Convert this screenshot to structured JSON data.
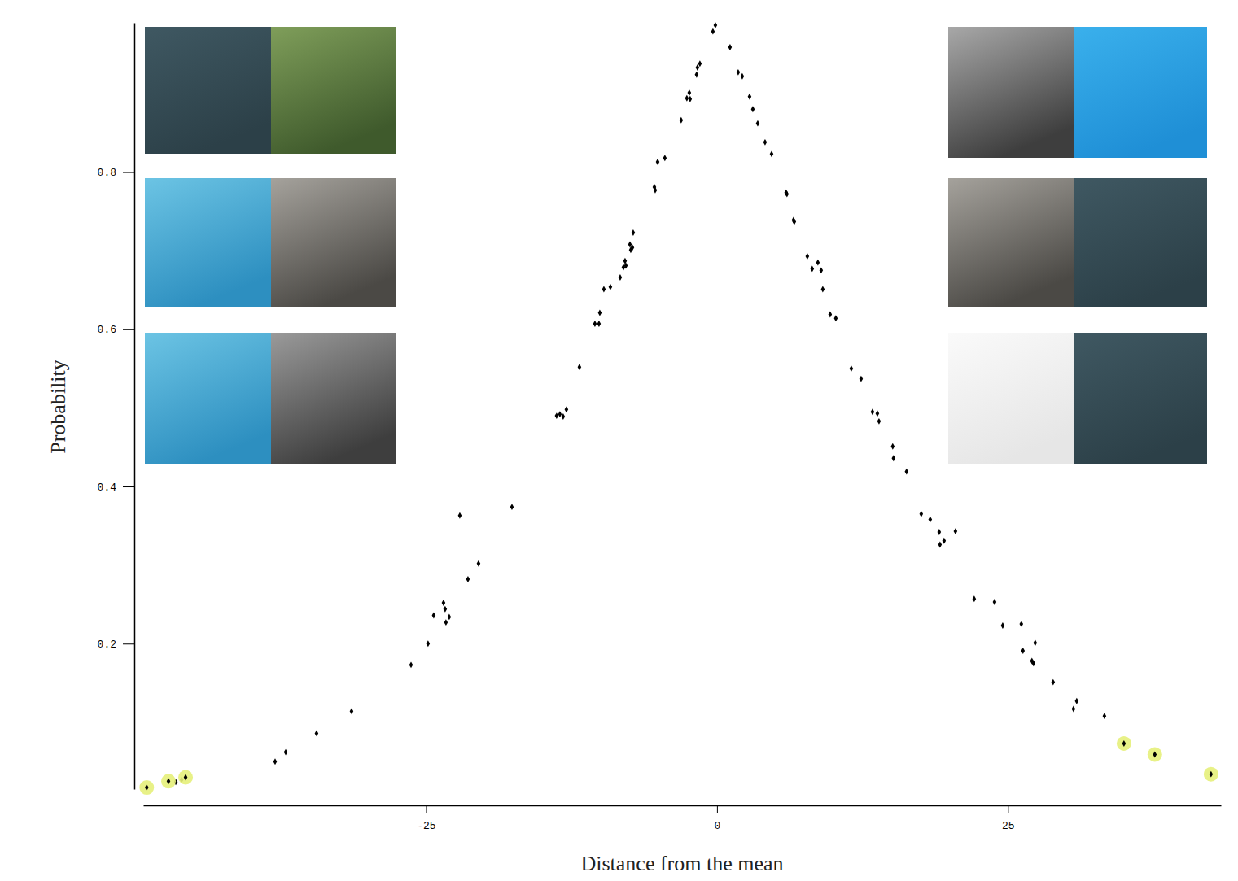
{
  "chart_data": {
    "type": "scatter",
    "x_label": "Distance from the mean",
    "y_label": "Probability",
    "xlim": [
      -49.3,
      43.3
    ],
    "ylim": [
      0.015,
      0.99
    ],
    "xticks": [
      -25,
      0,
      25
    ],
    "yticks": [
      0.2,
      0.4,
      0.6,
      0.8
    ],
    "series": [
      {
        "color": "#000000",
        "marker": "diamond",
        "x": [
          -46.5,
          -46.0,
          -37.97,
          -37.06,
          -34.41,
          -31.4,
          -26.29,
          -24.83,
          -24.34,
          -23.5,
          -23.36,
          -23.29,
          -23.01,
          -22.1,
          -21.4,
          -20.49,
          -17.62,
          -11.82,
          -13.78,
          -13.5,
          -13.22,
          -12.94,
          -10.49,
          -10.07,
          -10.14,
          -9.72,
          -9.16,
          -8.32,
          -8.04,
          -7.9,
          -7.83,
          -7.48,
          -7.41,
          -7.27,
          -7.2,
          -5.38,
          -5.31,
          -5.1,
          -4.48,
          -3.08,
          -2.59,
          -2.38,
          -2.31,
          -1.75,
          -1.68,
          -1.47,
          -0.35,
          -0.14,
          1.12,
          1.82,
          2.17,
          2.8,
          3.08,
          3.5,
          4.13,
          4.69,
          5.94,
          6.01,
          6.57,
          6.64,
          7.76,
          8.18,
          8.67,
          8.95,
          9.09,
          9.72,
          10.21,
          11.54,
          12.38,
          13.36,
          13.78,
          13.92,
          15.1,
          15.17,
          16.29,
          17.55,
          18.32,
          19.09,
          19.16,
          19.51,
          20.49,
          22.1,
          23.85,
          24.55,
          26.15,
          26.29,
          27.34,
          27.06,
          27.2,
          28.88,
          30.63,
          30.91,
          33.29
        ],
        "values": [
          0.024,
          0.027,
          0.05,
          0.062,
          0.086,
          0.114,
          0.173,
          0.2,
          0.236,
          0.252,
          0.244,
          0.227,
          0.234,
          0.363,
          0.282,
          0.302,
          0.374,
          0.552,
          0.49,
          0.492,
          0.489,
          0.498,
          0.607,
          0.621,
          0.607,
          0.651,
          0.654,
          0.666,
          0.679,
          0.687,
          0.681,
          0.708,
          0.701,
          0.704,
          0.723,
          0.781,
          0.777,
          0.813,
          0.818,
          0.866,
          0.894,
          0.901,
          0.893,
          0.924,
          0.933,
          0.938,
          0.979,
          0.987,
          0.959,
          0.927,
          0.922,
          0.896,
          0.88,
          0.862,
          0.838,
          0.823,
          0.774,
          0.772,
          0.739,
          0.737,
          0.693,
          0.677,
          0.685,
          0.675,
          0.651,
          0.619,
          0.614,
          0.55,
          0.537,
          0.495,
          0.493,
          0.483,
          0.451,
          0.436,
          0.419,
          0.365,
          0.358,
          0.342,
          0.326,
          0.331,
          0.343,
          0.257,
          0.253,
          0.223,
          0.225,
          0.191,
          0.201,
          0.178,
          0.175,
          0.151,
          0.117,
          0.127,
          0.108
        ]
      },
      {
        "color": "#e6f07a",
        "marker": "circle",
        "x": [
          -49.0,
          -47.13,
          -45.66,
          34.97,
          37.62,
          42.45
        ],
        "values": [
          0.017,
          0.025,
          0.03,
          0.073,
          0.059,
          0.034
        ]
      }
    ]
  }
}
